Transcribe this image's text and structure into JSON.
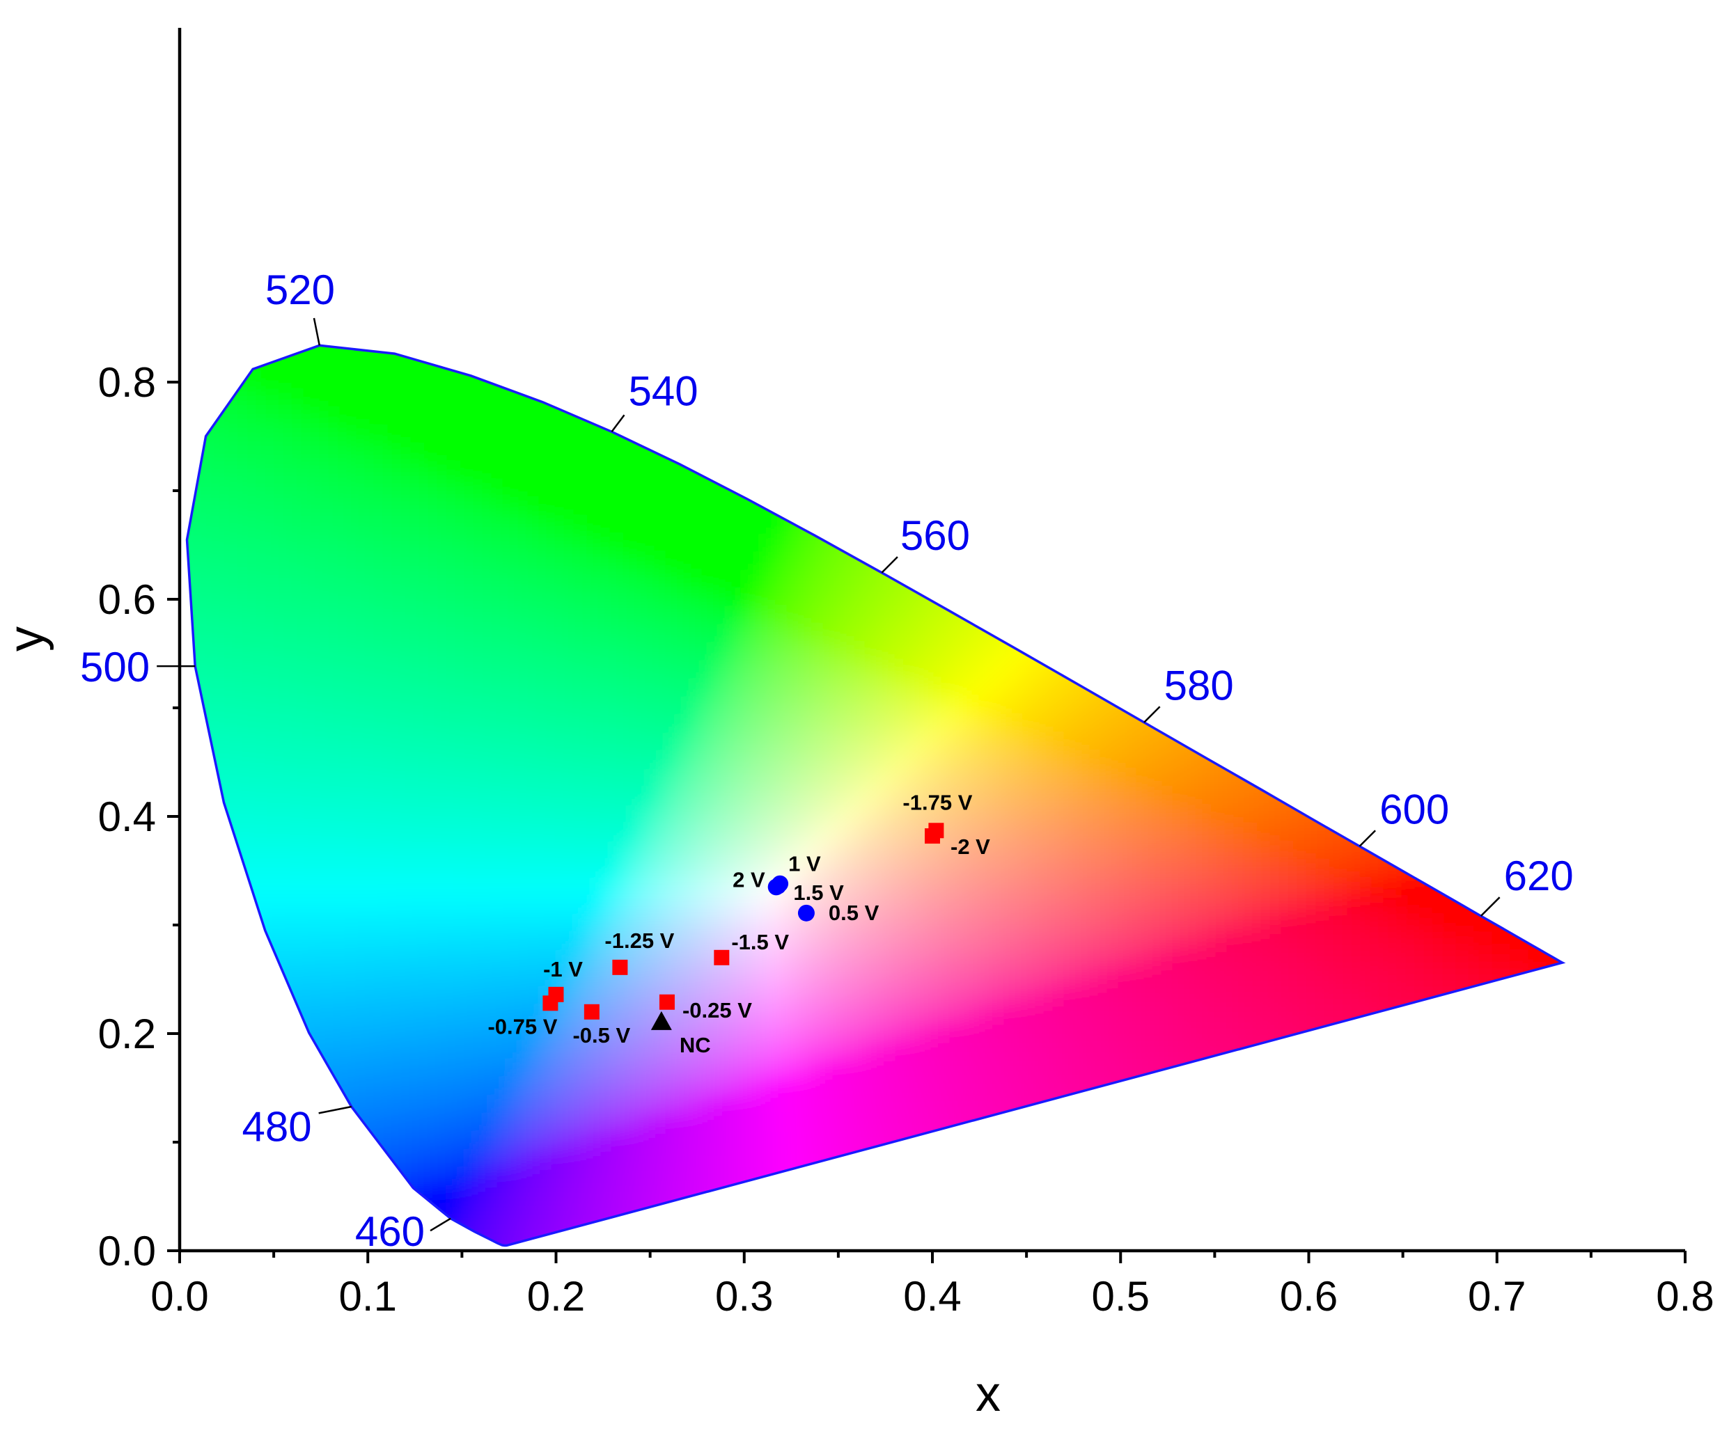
{
  "chart_data": {
    "type": "scatter",
    "title": "",
    "xlabel": "x",
    "ylabel": "y",
    "xlim": [
      0.0,
      0.8
    ],
    "ylim": [
      0.0,
      0.9
    ],
    "x_ticks": [
      "0.0",
      "0.1",
      "0.2",
      "0.3",
      "0.4",
      "0.5",
      "0.6",
      "0.7",
      "0.8"
    ],
    "y_ticks": [
      "0.0",
      "0.2",
      "0.4",
      "0.6",
      "0.8"
    ],
    "x_tick_values": [
      0.0,
      0.1,
      0.2,
      0.3,
      0.4,
      0.5,
      0.6,
      0.7,
      0.8
    ],
    "y_tick_values": [
      0.0,
      0.2,
      0.4,
      0.6,
      0.8
    ],
    "x_minor_ticks": [
      0.05,
      0.15,
      0.25,
      0.35,
      0.45,
      0.55,
      0.65,
      0.75
    ],
    "y_minor_ticks": [
      0.1,
      0.3,
      0.5,
      0.7
    ],
    "grid": false,
    "background": "CIE 1931 chromaticity diagram",
    "wavelength_labels": [
      {
        "label": "460",
        "x": 0.144,
        "y": 0.0297
      },
      {
        "label": "480",
        "x": 0.0913,
        "y": 0.1327
      },
      {
        "label": "500",
        "x": 0.0082,
        "y": 0.5384
      },
      {
        "label": "520",
        "x": 0.0743,
        "y": 0.8338
      },
      {
        "label": "540",
        "x": 0.2296,
        "y": 0.7543
      },
      {
        "label": "560",
        "x": 0.3731,
        "y": 0.6245
      },
      {
        "label": "580",
        "x": 0.5125,
        "y": 0.4866
      },
      {
        "label": "600",
        "x": 0.627,
        "y": 0.3725
      },
      {
        "label": "620",
        "x": 0.6915,
        "y": 0.3083
      }
    ],
    "series": [
      {
        "marker": "square",
        "color": "#ff0000",
        "points": [
          {
            "label": "-0.25 V",
            "x": 0.259,
            "y": 0.229
          },
          {
            "label": "-0.5 V",
            "x": 0.219,
            "y": 0.22
          },
          {
            "label": "-0.75 V",
            "x": 0.197,
            "y": 0.228
          },
          {
            "label": "-1 V",
            "x": 0.2,
            "y": 0.236
          },
          {
            "label": "-1.25 V",
            "x": 0.234,
            "y": 0.261
          },
          {
            "label": "-1.5 V",
            "x": 0.288,
            "y": 0.27
          },
          {
            "label": "-1.75 V",
            "x": 0.402,
            "y": 0.387
          },
          {
            "label": "-2 V",
            "x": 0.4,
            "y": 0.382
          }
        ]
      },
      {
        "marker": "circle",
        "color": "#0000ff",
        "points": [
          {
            "label": "0.5 V",
            "x": 0.333,
            "y": 0.311
          },
          {
            "label": "1 V",
            "x": 0.319,
            "y": 0.338
          },
          {
            "label": "1.5 V",
            "x": 0.318,
            "y": 0.336
          },
          {
            "label": "2 V",
            "x": 0.317,
            "y": 0.335
          }
        ]
      },
      {
        "marker": "triangle",
        "color": "#000000",
        "points": [
          {
            "label": "NC",
            "x": 0.256,
            "y": 0.211
          }
        ]
      }
    ]
  }
}
